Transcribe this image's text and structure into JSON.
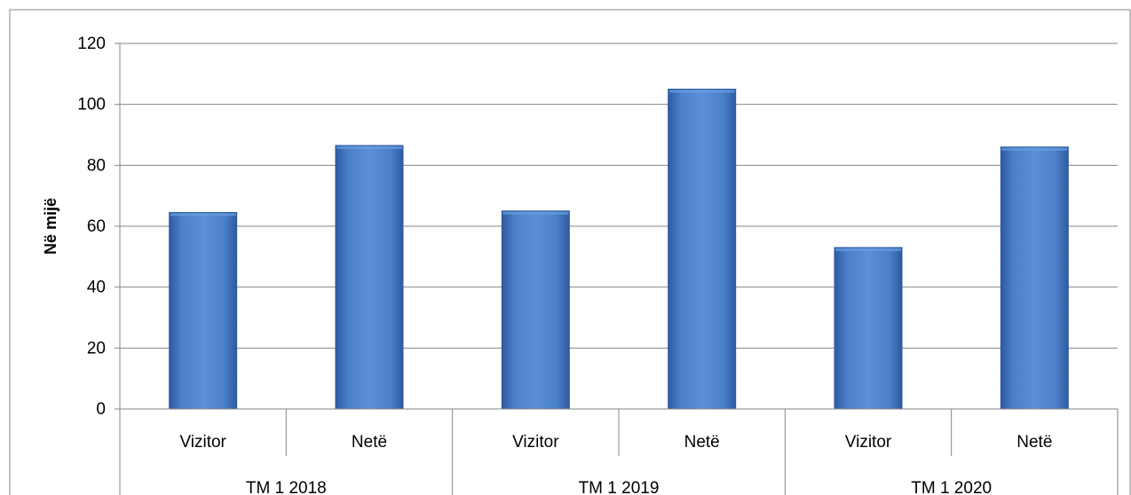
{
  "chart_data": {
    "type": "bar",
    "ylabel": "Në mijë",
    "ylim": [
      0,
      120
    ],
    "yticks": [
      0,
      20,
      40,
      60,
      80,
      100,
      120
    ],
    "grid": true,
    "groups": [
      {
        "label": "TM 1 2018",
        "categories": [
          "Vizitor",
          "Netë"
        ],
        "values": [
          64.5,
          86.5
        ]
      },
      {
        "label": "TM 1 2019",
        "categories": [
          "Vizitor",
          "Netë"
        ],
        "values": [
          65.0,
          105.0
        ]
      },
      {
        "label": "TM 1 2020",
        "categories": [
          "Vizitor",
          "Netë"
        ],
        "values": [
          53.0,
          86.0
        ]
      }
    ],
    "colors": {
      "bar": "#4a7fc9",
      "bar_dark": "#2d5aa0",
      "bar_light": "#6a9ee0",
      "grid": "#868686"
    }
  }
}
